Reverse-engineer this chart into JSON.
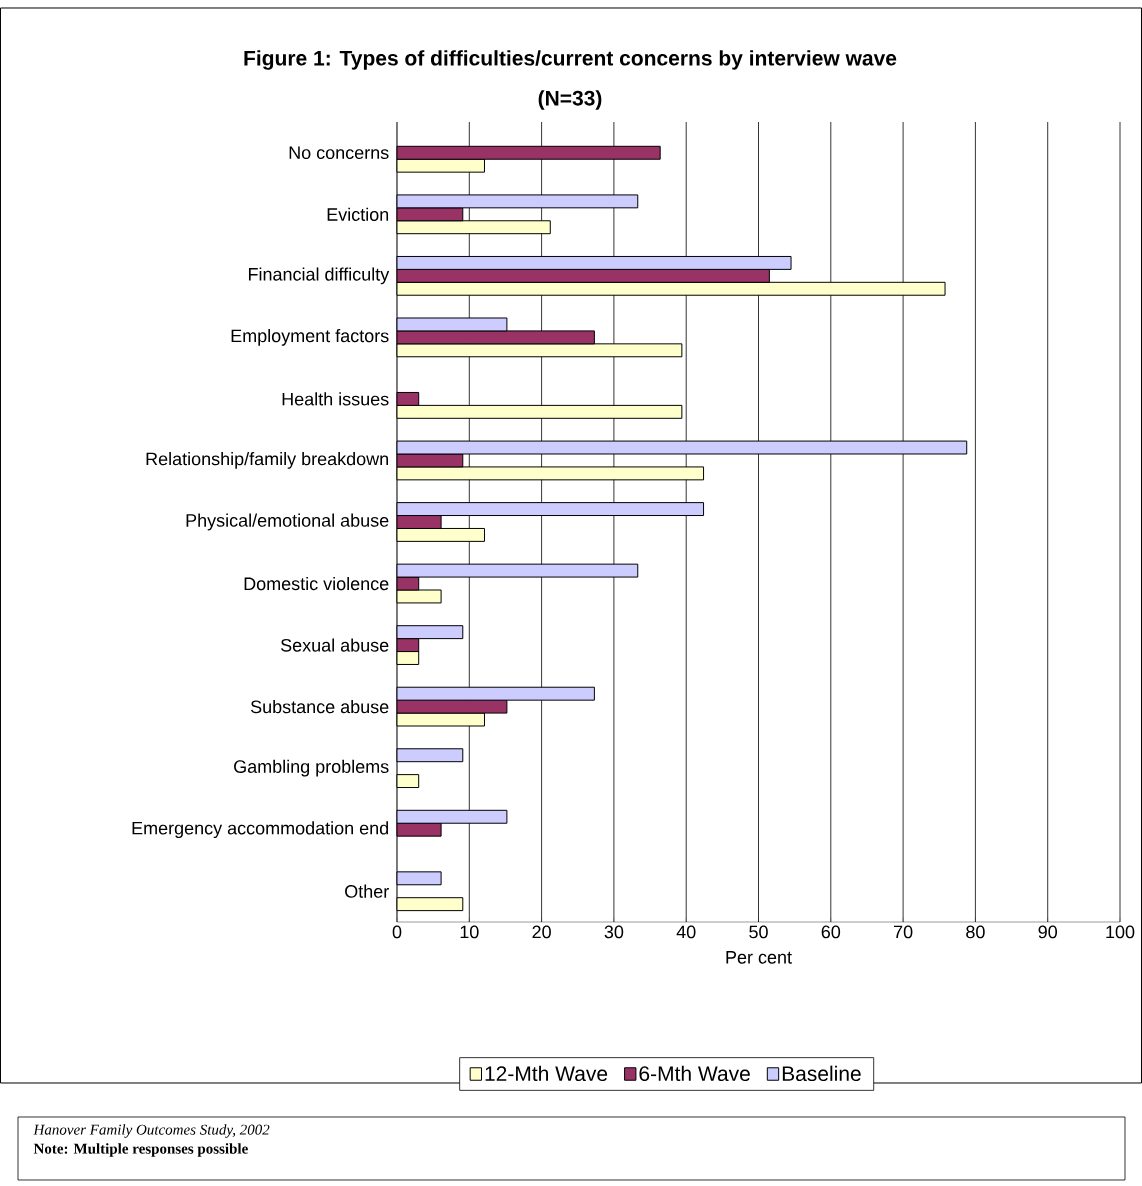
{
  "chart_data": {
    "type": "bar",
    "orientation": "horizontal",
    "title": "Figure 1: Types of difficulties/current concerns by interview wave",
    "subtitle": "(N=33)",
    "xlabel": "Per cent",
    "categories": [
      "No concerns",
      "Eviction",
      "Financial difficulty",
      "Employment factors",
      "Health issues",
      "Relationship/family breakdown",
      "Physical/emotional abuse",
      "Domestic violence",
      "Sexual abuse",
      "Substance abuse",
      "Gambling problems",
      "Emergency accommodation end",
      "Other"
    ],
    "series": [
      {
        "name": "12-Mth Wave",
        "color": "#ffffcc",
        "values": [
          12.1,
          21.2,
          75.8,
          39.4,
          39.4,
          42.4,
          12.1,
          6.1,
          3.0,
          12.1,
          3.0,
          null,
          9.1
        ]
      },
      {
        "name": "6-Mth Wave",
        "color": "#993366",
        "values": [
          36.4,
          9.1,
          51.5,
          27.3,
          3.0,
          9.1,
          6.1,
          3.0,
          3.0,
          15.2,
          null,
          6.1,
          null
        ]
      },
      {
        "name": "Baseline",
        "color": "#ccccff",
        "values": [
          null,
          33.3,
          54.5,
          15.2,
          null,
          78.8,
          42.4,
          33.3,
          9.1,
          27.3,
          9.1,
          15.2,
          6.1
        ]
      }
    ],
    "xlim": [
      0,
      100
    ],
    "xticks": [
      0,
      10,
      20,
      30,
      40,
      50,
      60,
      70,
      80,
      90,
      100
    ],
    "grid": "x",
    "legend": "bottom",
    "annotations": [
      "Hanover Family Outcomes Study, 2002",
      "Note: Multiple responses possible"
    ]
  }
}
